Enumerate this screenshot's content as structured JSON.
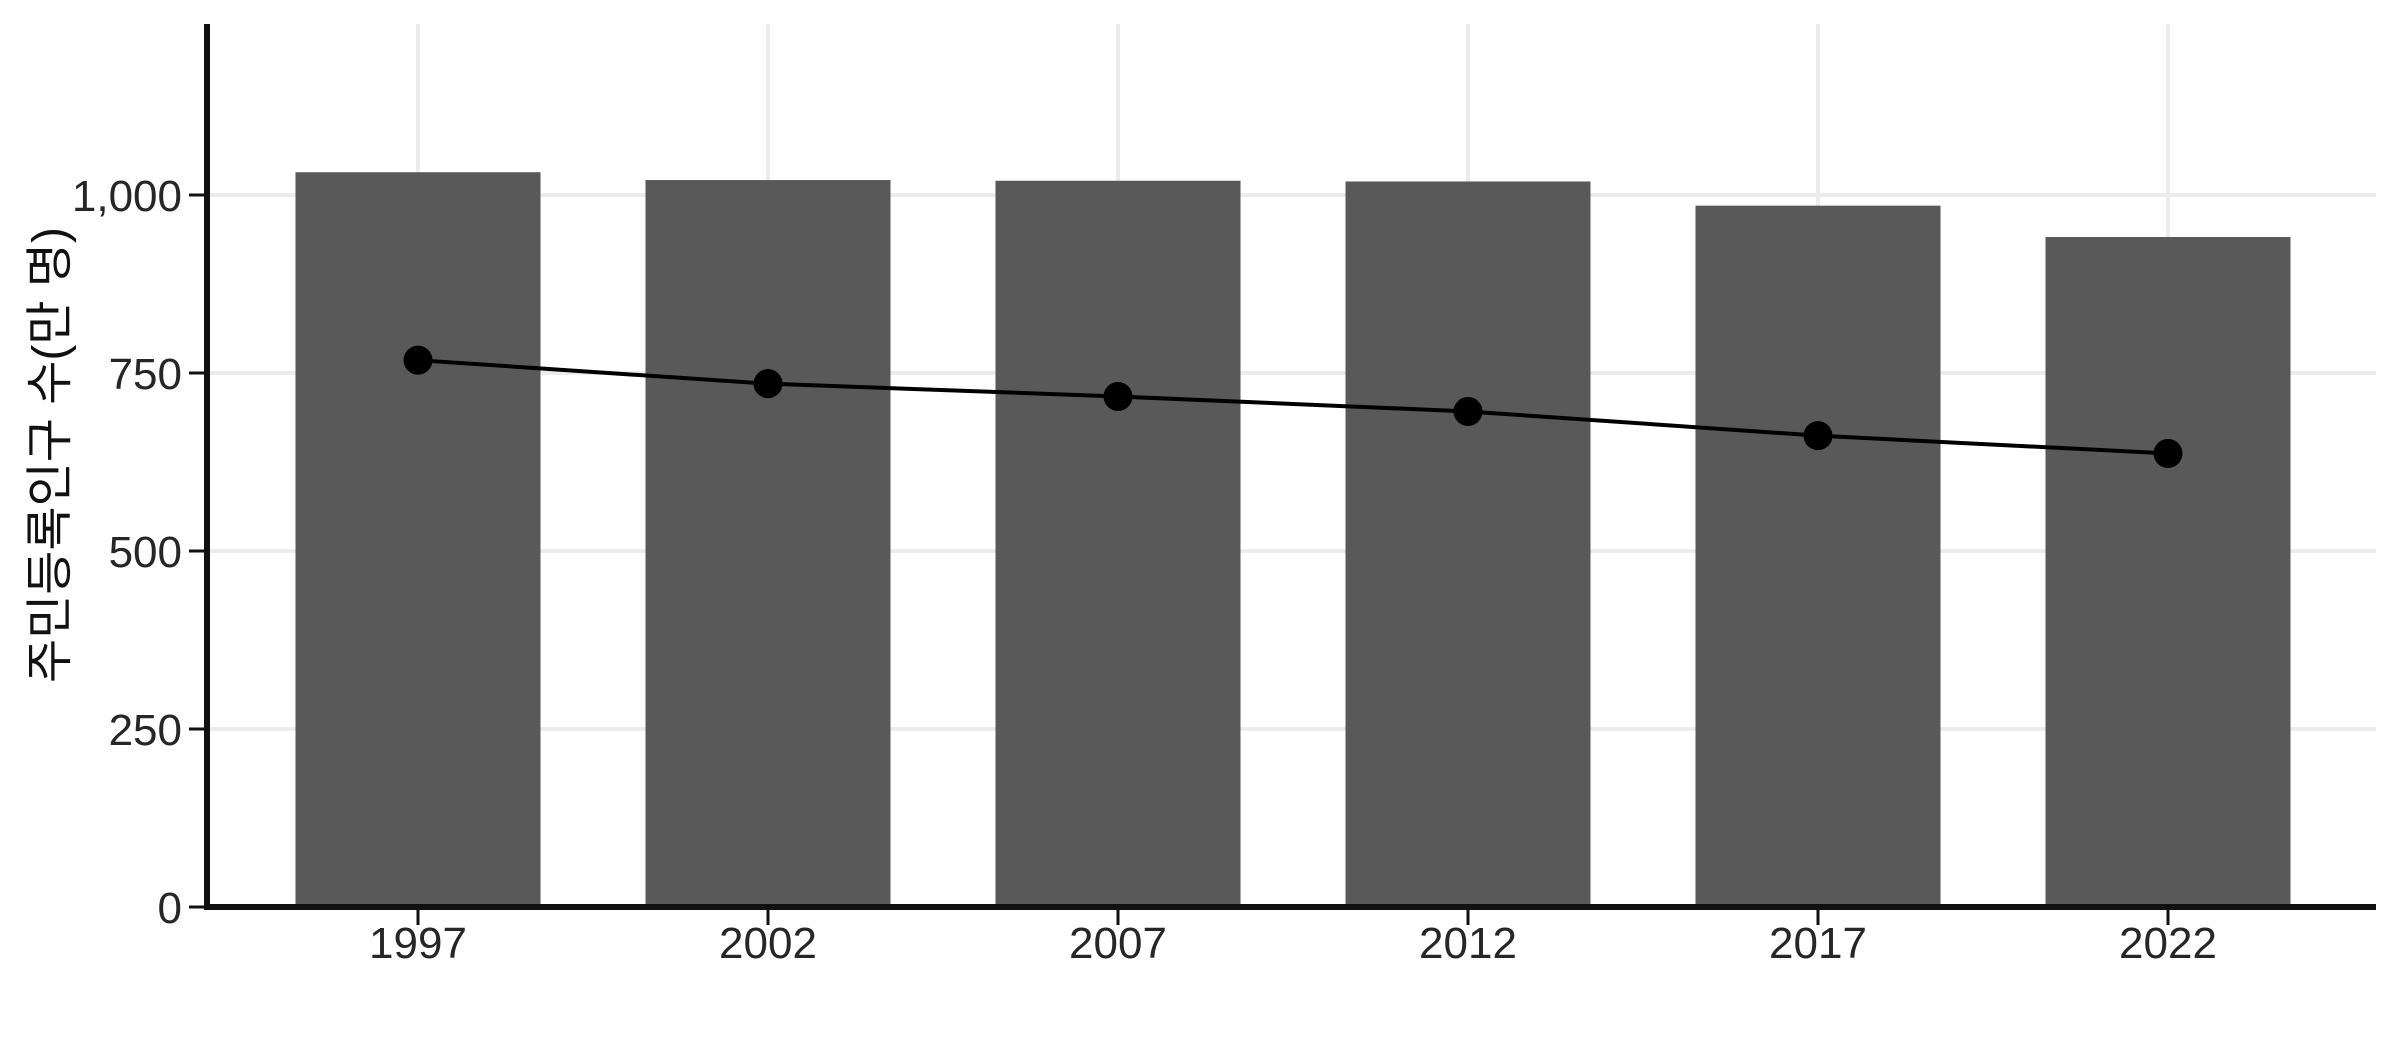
{
  "chart_data": {
    "type": "bar",
    "categories": [
      "1997",
      "2002",
      "2007",
      "2012",
      "2017",
      "2022"
    ],
    "series": [
      {
        "name": "bar-series",
        "type": "bar",
        "values": [
          1032,
          1021,
          1020,
          1019,
          985,
          941
        ]
      },
      {
        "name": "line-series",
        "type": "line",
        "values": [
          768,
          735,
          717,
          696,
          662,
          637
        ]
      }
    ],
    "ylabel": "주민등록인구 수(만 명)",
    "y_ticks": [
      "0",
      "250",
      "500",
      "750",
      "1,000"
    ],
    "y_tick_values": [
      0,
      250,
      500,
      750,
      1000
    ],
    "ylim": [
      0,
      1240
    ],
    "grid": "major-horizontal-and-vertical-at-categories",
    "legend": "none",
    "colors": {
      "bar": "#595959",
      "line": "#000000",
      "point": "#000000",
      "gridline": "#ececec",
      "axis": "#111111",
      "tick": "#111111",
      "tick_label": "#262626",
      "axis_title": "#111111",
      "background": "#ffffff"
    }
  }
}
